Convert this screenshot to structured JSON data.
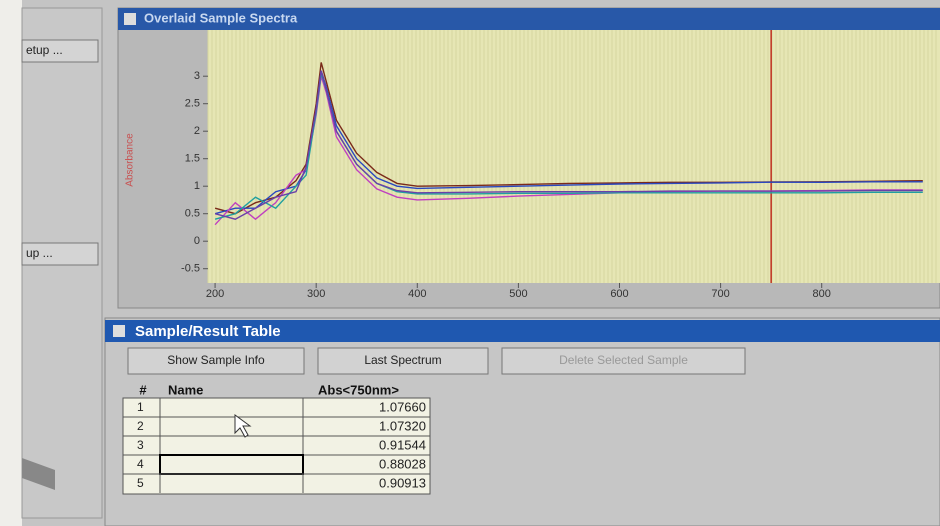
{
  "left_panel": {
    "buttons": [
      "etup ...",
      "up ..."
    ]
  },
  "spectra_window": {
    "title": "Overlaid Sample Spectra",
    "chart_data": {
      "type": "line",
      "y_label": "Absorbance",
      "x": [
        200,
        220,
        240,
        260,
        280,
        290,
        300,
        305,
        310,
        320,
        340,
        360,
        380,
        400,
        450,
        500,
        550,
        600,
        650,
        700,
        750,
        800,
        850,
        900
      ],
      "series": [
        {
          "color": "#7a2a1a",
          "values": [
            0.6,
            0.5,
            0.7,
            0.8,
            1.1,
            1.4,
            2.5,
            3.25,
            2.9,
            2.2,
            1.6,
            1.25,
            1.05,
            1.0,
            1.01,
            1.03,
            1.05,
            1.06,
            1.07,
            1.07,
            1.077,
            1.08,
            1.09,
            1.1
          ]
        },
        {
          "color": "#2a48c0",
          "values": [
            0.5,
            0.6,
            0.6,
            0.9,
            1.0,
            1.3,
            2.4,
            3.1,
            2.8,
            2.1,
            1.5,
            1.15,
            1.0,
            0.96,
            0.98,
            1.0,
            1.02,
            1.04,
            1.05,
            1.06,
            1.073,
            1.07,
            1.08,
            1.08
          ]
        },
        {
          "color": "#c040c0",
          "values": [
            0.3,
            0.7,
            0.4,
            0.7,
            1.2,
            1.3,
            2.3,
            3.0,
            2.7,
            1.9,
            1.3,
            0.95,
            0.8,
            0.75,
            0.78,
            0.82,
            0.85,
            0.88,
            0.9,
            0.91,
            0.915,
            0.92,
            0.93,
            0.93
          ]
        },
        {
          "color": "#20a0a0",
          "values": [
            0.4,
            0.5,
            0.8,
            0.6,
            1.0,
            1.2,
            2.35,
            3.05,
            2.75,
            2.0,
            1.4,
            1.05,
            0.9,
            0.86,
            0.86,
            0.87,
            0.87,
            0.88,
            0.88,
            0.88,
            0.88,
            0.88,
            0.89,
            0.89
          ]
        },
        {
          "color": "#6a40a8",
          "values": [
            0.5,
            0.4,
            0.6,
            0.8,
            0.9,
            1.35,
            2.4,
            3.1,
            2.75,
            2.0,
            1.4,
            1.05,
            0.92,
            0.88,
            0.89,
            0.9,
            0.9,
            0.9,
            0.91,
            0.91,
            0.909,
            0.91,
            0.92,
            0.92
          ]
        }
      ],
      "xlim": [
        193,
        917
      ],
      "ylim": [
        -0.76,
        3.84
      ],
      "xticks": [
        200,
        300,
        400,
        500,
        600,
        700,
        800
      ],
      "yticks": [
        -0.5,
        0,
        0.5,
        1,
        1.5,
        2,
        2.5,
        3
      ],
      "cursor_x": 750,
      "cursor_color": "#c03020",
      "grid": false
    }
  },
  "table_window": {
    "title": "Sample/Result Table",
    "buttons": [
      "Show Sample Info",
      "Last Spectrum",
      "Delete Selected Sample"
    ],
    "table": {
      "headers": [
        "#",
        "Name",
        "Abs<750nm>"
      ],
      "rows": [
        {
          "number": "1",
          "abs": "1.07660"
        },
        {
          "number": "2",
          "abs": "1.07320"
        },
        {
          "number": "3",
          "abs": "0.91544"
        },
        {
          "number": "4",
          "abs": "0.88028"
        },
        {
          "number": "5",
          "abs": "0.90913"
        }
      ]
    }
  }
}
